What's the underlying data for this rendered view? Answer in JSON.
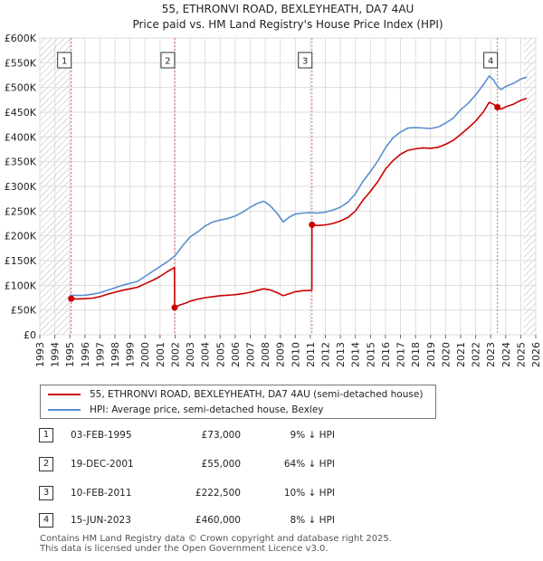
{
  "chart_data": {
    "type": "line",
    "title": "55, ETHRONVI ROAD, BEXLEYHEATH, DA7 4AU",
    "subtitle": "Price paid vs. HM Land Registry's House Price Index (HPI)",
    "xlim": [
      1993,
      2026
    ],
    "ylim": [
      0,
      600000
    ],
    "x_ticks": [
      "1993",
      "1994",
      "1995",
      "1996",
      "1997",
      "1998",
      "1999",
      "2000",
      "2001",
      "2002",
      "2003",
      "2004",
      "2005",
      "2006",
      "2007",
      "2008",
      "2009",
      "2010",
      "2011",
      "2012",
      "2013",
      "2014",
      "2015",
      "2016",
      "2017",
      "2018",
      "2019",
      "2020",
      "2021",
      "2022",
      "2023",
      "2024",
      "2025",
      "2026"
    ],
    "y_ticks": [
      {
        "value": 0,
        "label": "£0"
      },
      {
        "value": 50000,
        "label": "£50K"
      },
      {
        "value": 100000,
        "label": "£100K"
      },
      {
        "value": 150000,
        "label": "£150K"
      },
      {
        "value": 200000,
        "label": "£200K"
      },
      {
        "value": 250000,
        "label": "£250K"
      },
      {
        "value": 300000,
        "label": "£300K"
      },
      {
        "value": 350000,
        "label": "£350K"
      },
      {
        "value": 400000,
        "label": "£400K"
      },
      {
        "value": 450000,
        "label": "£450K"
      },
      {
        "value": 500000,
        "label": "£500K"
      },
      {
        "value": 550000,
        "label": "£550K"
      },
      {
        "value": 600000,
        "label": "£600K"
      }
    ],
    "hatch_ranges": [
      [
        1993,
        1995.09
      ],
      [
        2025.2,
        2026
      ]
    ],
    "series": [
      {
        "name": "55, ETHRONVI ROAD, BEXLEYHEATH, DA7 4AU (semi-detached house)",
        "color": "#cc0000",
        "points": [
          [
            1995.09,
            73000
          ],
          [
            1995.5,
            72500
          ],
          [
            1996,
            73000
          ],
          [
            1996.5,
            74000
          ],
          [
            1997,
            77000
          ],
          [
            1997.5,
            82000
          ],
          [
            1998,
            86000
          ],
          [
            1998.5,
            90000
          ],
          [
            1999,
            93000
          ],
          [
            1999.5,
            96000
          ],
          [
            2000,
            103000
          ],
          [
            2000.5,
            110000
          ],
          [
            2001,
            118000
          ],
          [
            2001.5,
            128000
          ],
          [
            2001.96,
            136000
          ],
          [
            2001.97,
            55000
          ],
          [
            2002.3,
            60000
          ],
          [
            2002.7,
            64000
          ],
          [
            2003,
            68000
          ],
          [
            2003.5,
            72000
          ],
          [
            2004,
            75000
          ],
          [
            2004.5,
            77000
          ],
          [
            2005,
            79000
          ],
          [
            2005.5,
            80000
          ],
          [
            2006,
            81000
          ],
          [
            2006.5,
            83000
          ],
          [
            2007,
            86000
          ],
          [
            2007.5,
            90000
          ],
          [
            2007.9,
            93000
          ],
          [
            2008.3,
            91000
          ],
          [
            2008.8,
            85000
          ],
          [
            2009.2,
            79000
          ],
          [
            2009.6,
            83000
          ],
          [
            2010,
            87000
          ],
          [
            2010.5,
            89000
          ],
          [
            2011.1,
            90000
          ],
          [
            2011.11,
            222500
          ],
          [
            2011.5,
            221000
          ],
          [
            2012,
            222000
          ],
          [
            2012.5,
            225000
          ],
          [
            2013,
            230000
          ],
          [
            2013.5,
            237000
          ],
          [
            2014,
            250000
          ],
          [
            2014.5,
            272000
          ],
          [
            2015,
            290000
          ],
          [
            2015.5,
            310000
          ],
          [
            2016,
            335000
          ],
          [
            2016.5,
            352000
          ],
          [
            2017,
            365000
          ],
          [
            2017.5,
            373000
          ],
          [
            2018,
            376000
          ],
          [
            2018.5,
            378000
          ],
          [
            2019,
            377000
          ],
          [
            2019.5,
            379000
          ],
          [
            2020,
            385000
          ],
          [
            2020.5,
            393000
          ],
          [
            2021,
            405000
          ],
          [
            2021.5,
            418000
          ],
          [
            2022,
            432000
          ],
          [
            2022.5,
            450000
          ],
          [
            2022.9,
            470000
          ],
          [
            2023.2,
            466000
          ],
          [
            2023.45,
            460000
          ],
          [
            2023.7,
            456000
          ],
          [
            2024,
            461000
          ],
          [
            2024.5,
            466000
          ],
          [
            2025,
            474000
          ],
          [
            2025.4,
            478000
          ]
        ]
      },
      {
        "name": "HPI: Average price, semi-detached house, Bexley",
        "color": "#5a8fd0",
        "points": [
          [
            1995,
            80000
          ],
          [
            1995.5,
            79500
          ],
          [
            1996,
            80000
          ],
          [
            1996.5,
            82000
          ],
          [
            1997,
            85000
          ],
          [
            1997.5,
            90000
          ],
          [
            1998,
            95000
          ],
          [
            1998.5,
            100000
          ],
          [
            1999,
            104000
          ],
          [
            1999.5,
            108000
          ],
          [
            2000,
            118000
          ],
          [
            2000.5,
            128000
          ],
          [
            2001,
            138000
          ],
          [
            2001.5,
            148000
          ],
          [
            2002,
            160000
          ],
          [
            2002.5,
            180000
          ],
          [
            2003,
            198000
          ],
          [
            2003.5,
            208000
          ],
          [
            2004,
            220000
          ],
          [
            2004.5,
            228000
          ],
          [
            2005,
            232000
          ],
          [
            2005.5,
            235000
          ],
          [
            2006,
            240000
          ],
          [
            2006.5,
            248000
          ],
          [
            2007,
            258000
          ],
          [
            2007.5,
            266000
          ],
          [
            2007.9,
            270000
          ],
          [
            2008.3,
            262000
          ],
          [
            2008.8,
            245000
          ],
          [
            2009.2,
            228000
          ],
          [
            2009.6,
            238000
          ],
          [
            2010,
            244000
          ],
          [
            2010.5,
            246000
          ],
          [
            2011,
            247000
          ],
          [
            2011.5,
            246000
          ],
          [
            2012,
            248000
          ],
          [
            2012.5,
            252000
          ],
          [
            2013,
            258000
          ],
          [
            2013.5,
            268000
          ],
          [
            2014,
            285000
          ],
          [
            2014.5,
            310000
          ],
          [
            2015,
            330000
          ],
          [
            2015.5,
            352000
          ],
          [
            2016,
            378000
          ],
          [
            2016.5,
            398000
          ],
          [
            2017,
            410000
          ],
          [
            2017.5,
            418000
          ],
          [
            2018,
            419000
          ],
          [
            2018.5,
            418000
          ],
          [
            2019,
            417000
          ],
          [
            2019.5,
            420000
          ],
          [
            2020,
            428000
          ],
          [
            2020.5,
            438000
          ],
          [
            2021,
            455000
          ],
          [
            2021.5,
            468000
          ],
          [
            2022,
            485000
          ],
          [
            2022.5,
            505000
          ],
          [
            2022.9,
            523000
          ],
          [
            2023.2,
            515000
          ],
          [
            2023.45,
            502000
          ],
          [
            2023.7,
            496000
          ],
          [
            2024,
            502000
          ],
          [
            2024.5,
            508000
          ],
          [
            2025,
            517000
          ],
          [
            2025.4,
            521000
          ]
        ]
      }
    ],
    "sales": [
      {
        "num": "1",
        "x": 1995.09,
        "price": 73000
      },
      {
        "num": "2",
        "x": 2001.97,
        "price": 55000
      },
      {
        "num": "3",
        "x": 2011.11,
        "price": 222500
      },
      {
        "num": "4",
        "x": 2023.45,
        "price": 460000
      }
    ],
    "legend": [
      {
        "label": "55, ETHRONVI ROAD, BEXLEYHEATH, DA7 4AU (semi-detached house)",
        "color": "#cc0000"
      },
      {
        "label": "HPI: Average price, semi-detached house, Bexley",
        "color": "#5a8fd0"
      }
    ],
    "grid": true
  },
  "transactions": [
    {
      "num": "1",
      "date": "03-FEB-1995",
      "price": "£73,000",
      "hpi": "9% ↓ HPI"
    },
    {
      "num": "2",
      "date": "19-DEC-2001",
      "price": "£55,000",
      "hpi": "64% ↓ HPI"
    },
    {
      "num": "3",
      "date": "10-FEB-2011",
      "price": "£222,500",
      "hpi": "10% ↓ HPI"
    },
    {
      "num": "4",
      "date": "15-JUN-2023",
      "price": "£460,000",
      "hpi": "8% ↓ HPI"
    }
  ],
  "footer": {
    "line1": "Contains HM Land Registry data © Crown copyright and database right 2025.",
    "line2": "This data is licensed under the Open Government Licence v3.0."
  }
}
